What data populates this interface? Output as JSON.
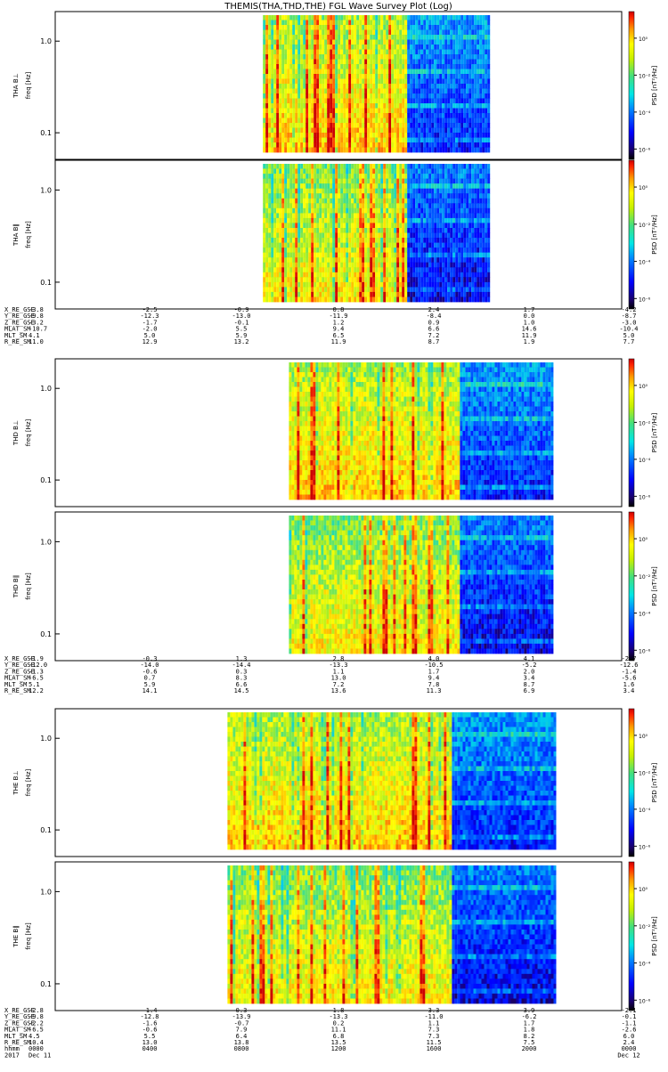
{
  "title": "THEMIS(THA,THD,THE) FGL Wave Survey Plot (Log)",
  "colorbar": {
    "label": "PSD [nT²/Hz]",
    "tick_labels": [
      "10⁰",
      "10⁻²",
      "10⁻⁴",
      "10⁻⁶"
    ]
  },
  "axis": {
    "y_ticks": [
      "1.0",
      "0.1"
    ],
    "ylabel": "freq [Hz]"
  },
  "chart_data": [
    {
      "type": "heatmap",
      "probe": "THA",
      "panels": [
        "THA B⊥",
        "THA B∥"
      ],
      "ylabel": "freq [Hz]",
      "yscale": "log",
      "data_extent_hours": [
        8.8,
        18.4
      ],
      "vertical_transition_hour": 14.9,
      "ephemeris_rows": [
        {
          "label": "X_RE_GSE",
          "values": [
            "-3.8",
            "-2.5",
            "-0.9",
            "0.8",
            "2.4",
            "1.7",
            "-4.2"
          ]
        },
        {
          "label": "Y_RE_GSE",
          "values": [
            "-9.8",
            "-12.3",
            "-13.0",
            "-11.9",
            "-8.4",
            "0.0",
            "-8.7"
          ]
        },
        {
          "label": "Z_RE_GSE",
          "values": [
            "-3.2",
            "-1.7",
            "-0.1",
            "1.2",
            "0.9",
            "1.0",
            "-3.0"
          ]
        },
        {
          "label": "MLAT_SM",
          "values": [
            "-10.7",
            "-2.0",
            "5.5",
            "9.4",
            "6.6",
            "14.6",
            "-10.4"
          ]
        },
        {
          "label": "MLT_SM",
          "values": [
            "4.1",
            "5.0",
            "5.9",
            "6.5",
            "7.2",
            "11.9",
            "5.0"
          ]
        },
        {
          "label": "R_RE_SM",
          "values": [
            "11.0",
            "12.9",
            "13.2",
            "11.9",
            "8.7",
            "1.9",
            "7.7"
          ]
        }
      ]
    },
    {
      "type": "heatmap",
      "probe": "THD",
      "panels": [
        "THD B⊥",
        "THD B∥"
      ],
      "ylabel": "freq [Hz]",
      "yscale": "log",
      "data_extent_hours": [
        9.9,
        21.0
      ],
      "vertical_transition_hour": 17.1,
      "ephemeris_rows": [
        {
          "label": "X_RE_GSE",
          "values": [
            "-1.9",
            "-0.3",
            "1.3",
            "2.8",
            "4.0",
            "4.1",
            "-2.7"
          ]
        },
        {
          "label": "Y_RE_GSE",
          "values": [
            "-12.0",
            "-14.0",
            "-14.4",
            "-13.3",
            "-10.5",
            "-5.2",
            "-12.6"
          ]
        },
        {
          "label": "Z_RE_GSE",
          "values": [
            "-1.3",
            "-0.6",
            "0.3",
            "1.1",
            "1.7",
            "2.0",
            "-1.4"
          ]
        },
        {
          "label": "MLAT_SM",
          "values": [
            "-6.5",
            "0.7",
            "8.3",
            "13.0",
            "9.4",
            "3.4",
            "-5.6"
          ]
        },
        {
          "label": "MLT_SM",
          "values": [
            "5.1",
            "5.9",
            "6.6",
            "7.2",
            "7.8",
            "8.7",
            "1.6"
          ]
        },
        {
          "label": "R_RE_SM",
          "values": [
            "12.2",
            "14.1",
            "14.5",
            "13.6",
            "11.3",
            "6.9",
            "3.4"
          ]
        }
      ]
    },
    {
      "type": "heatmap",
      "probe": "THE",
      "panels": [
        "THE B⊥",
        "THE B∥"
      ],
      "ylabel": "freq [Hz]",
      "yscale": "log",
      "data_extent_hours": [
        7.3,
        21.2
      ],
      "vertical_transition_hour": 16.8,
      "ephemeris_rows": [
        {
          "label": "X_RE_GSE",
          "values": [
            "-2.8",
            "-1.4",
            "0.3",
            "1.8",
            "3.3",
            "3.9",
            "-2.1"
          ]
        },
        {
          "label": "Y_RE_GSE",
          "values": [
            "-9.8",
            "-12.8",
            "-13.9",
            "-13.3",
            "-11.0",
            "-6.2",
            "-0.1"
          ]
        },
        {
          "label": "Z_RE_GSE",
          "values": [
            "-2.2",
            "-1.6",
            "-0.7",
            "0.2",
            "1.1",
            "1.7",
            "-1.1"
          ]
        },
        {
          "label": "MLAT_SM",
          "values": [
            "-6.5",
            "-0.6",
            "7.9",
            "11.1",
            "7.3",
            "1.8",
            "-2.6"
          ]
        },
        {
          "label": "MLT_SM",
          "values": [
            "4.5",
            "5.5",
            "6.4",
            "6.8",
            "7.3",
            "8.2",
            "6.0"
          ]
        },
        {
          "label": "R_RE_SM",
          "values": [
            "10.4",
            "13.0",
            "13.8",
            "13.5",
            "11.5",
            "7.5",
            "2.4"
          ]
        }
      ],
      "time_rows": [
        {
          "label": "hhmm",
          "values": [
            "0000",
            "0400",
            "0800",
            "1200",
            "1600",
            "2000",
            "0000"
          ]
        },
        {
          "label": "2017",
          "values": [
            "Dec 11",
            "",
            "",
            "",
            "",
            "",
            "Dec 12"
          ]
        }
      ]
    }
  ]
}
